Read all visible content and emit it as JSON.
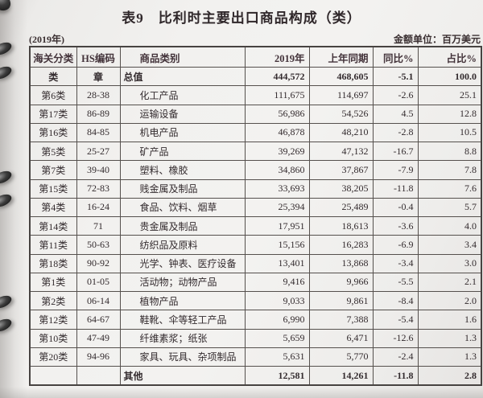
{
  "title": "表9　比利时主要出口商品构成（类）",
  "subtitle_left": "(2019年)",
  "subtitle_right": "金额单位：百万美元",
  "colors": {
    "ink": "#332b2e",
    "paper": "#f0efed",
    "border": "#55504d"
  },
  "table": {
    "columns": [
      "海关分类",
      "HS编码",
      "商品类别",
      "2019年",
      "上年同期",
      "同比%",
      "占比%"
    ],
    "subheader": [
      "类",
      "章",
      "总值",
      "444,572",
      "468,605",
      "-5.1",
      "100.0"
    ],
    "rows": [
      [
        "第6类",
        "28-38",
        "化工产品",
        "111,675",
        "114,697",
        "-2.6",
        "25.1"
      ],
      [
        "第17类",
        "86-89",
        "运输设备",
        "56,986",
        "54,526",
        "4.5",
        "12.8"
      ],
      [
        "第16类",
        "84-85",
        "机电产品",
        "46,878",
        "48,210",
        "-2.8",
        "10.5"
      ],
      [
        "第5类",
        "25-27",
        "矿产品",
        "39,269",
        "47,132",
        "-16.7",
        "8.8"
      ],
      [
        "第7类",
        "39-40",
        "塑料、橡胶",
        "34,860",
        "37,867",
        "-7.9",
        "7.8"
      ],
      [
        "第15类",
        "72-83",
        "贱金属及制品",
        "33,693",
        "38,205",
        "-11.8",
        "7.6"
      ],
      [
        "第4类",
        "16-24",
        "食品、饮料、烟草",
        "25,394",
        "25,489",
        "-0.4",
        "5.7"
      ],
      [
        "第14类",
        "71",
        "贵金属及制品",
        "17,951",
        "18,613",
        "-3.6",
        "4.0"
      ],
      [
        "第11类",
        "50-63",
        "纺织品及原料",
        "15,156",
        "16,283",
        "-6.9",
        "3.4"
      ],
      [
        "第18类",
        "90-92",
        "光学、钟表、医疗设备",
        "13,401",
        "13,868",
        "-3.4",
        "3.0"
      ],
      [
        "第1类",
        "01-05",
        "活动物；动物产品",
        "9,416",
        "9,966",
        "-5.5",
        "2.1"
      ],
      [
        "第2类",
        "06-14",
        "植物产品",
        "9,033",
        "9,861",
        "-8.4",
        "2.0"
      ],
      [
        "第12类",
        "64-67",
        "鞋靴、伞等轻工产品",
        "6,990",
        "7,388",
        "-5.4",
        "1.6"
      ],
      [
        "第10类",
        "47-49",
        "纤维素浆；纸张",
        "5,659",
        "6,471",
        "-12.6",
        "1.3"
      ],
      [
        "第20类",
        "94-96",
        "家具、玩具、杂项制品",
        "5,631",
        "5,770",
        "-2.4",
        "1.3"
      ]
    ],
    "footer": [
      "",
      "",
      "其他",
      "12,581",
      "14,261",
      "-11.8",
      "2.8"
    ]
  }
}
